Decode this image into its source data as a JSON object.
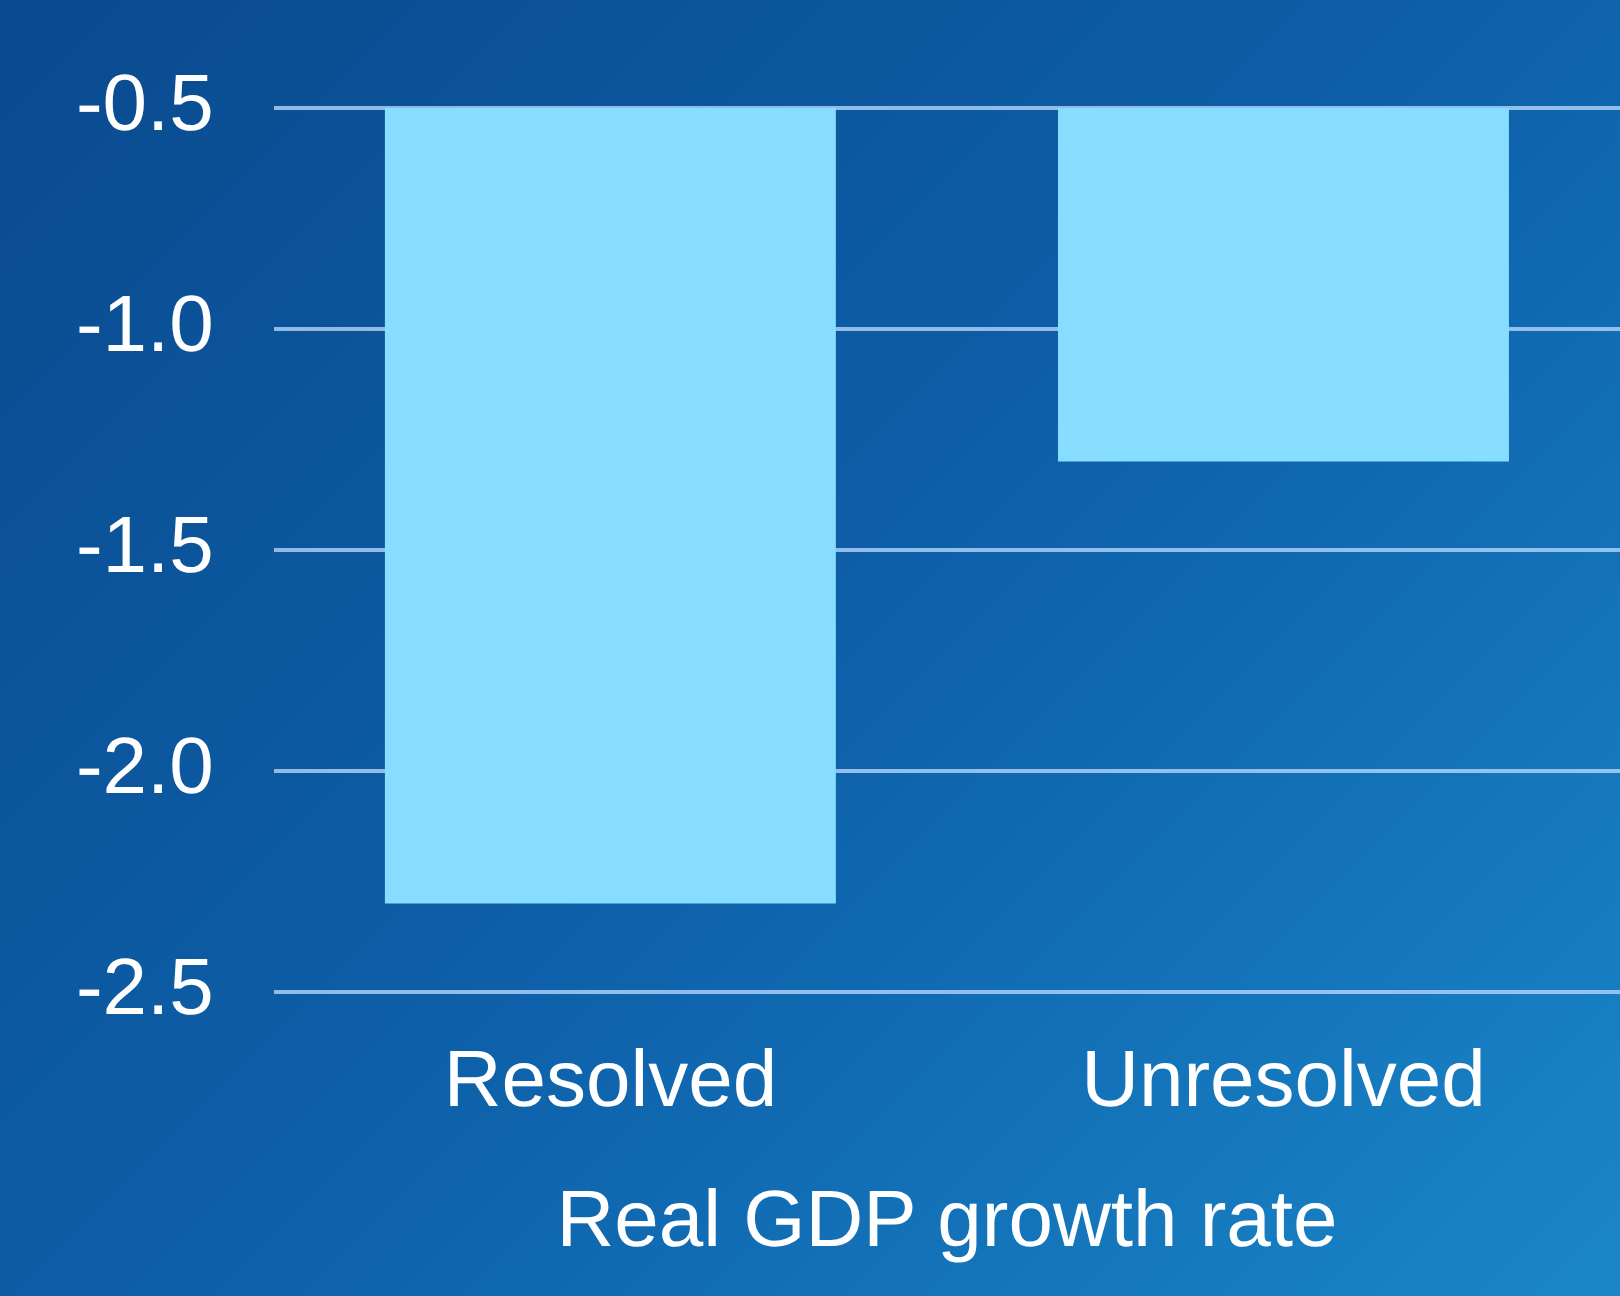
{
  "chart_data": {
    "type": "bar",
    "xlabel": "Real GDP growth rate",
    "categories": [
      "Resolved",
      "Unresolved"
    ],
    "values": [
      -2.3,
      -1.3
    ],
    "color": "#87ddff",
    "ylim": [
      -2.5,
      -0.5
    ],
    "yticks": [
      {
        "value": -2.5,
        "label": "-2.5"
      },
      {
        "value": -2.0,
        "label": "-2.0"
      },
      {
        "value": -1.5,
        "label": "-1.5"
      },
      {
        "value": -1.0,
        "label": "-1.0"
      },
      {
        "value": -0.5,
        "label": "-0.5"
      }
    ],
    "grid": "y",
    "legend": false
  }
}
